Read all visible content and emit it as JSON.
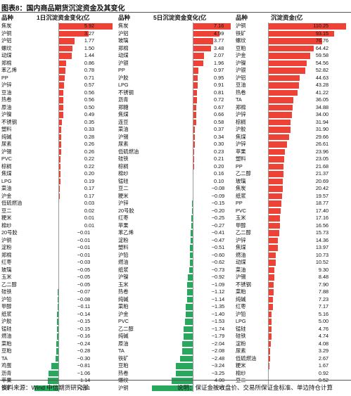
{
  "title": "图表8：国内商品期货沉淀资金及其变化",
  "source": "资料来源：Wind 中信期货研究部",
  "note": "说明：保证金按收盘价、交易所保证金标准、单边持仓计算",
  "colors": {
    "positive": "#ee4236",
    "negative": "#27a85d"
  },
  "chart_data": [
    {
      "type": "bar",
      "orientation": "horizontal",
      "name_header": "品种",
      "value_header": "1日沉淀资金变化(亿",
      "categories": [
        "焦炭",
        "沪铜",
        "沪铝",
        "螺纹",
        "动煤",
        "郑棉",
        "苯乙烯",
        "PP",
        "沪锌",
        "豆油",
        "热卷",
        "原油",
        "沪镍",
        "不锈钢",
        "塑料",
        "纯碱",
        "尿素",
        "沪锡",
        "PVC",
        "棕榈",
        "焦煤",
        "LPG",
        "菜油",
        "沪金",
        "低硫燃油",
        "豆二",
        "粳米",
        "棉纱",
        "20号胶",
        "沪铜",
        "淀粉",
        "郑棉",
        "红枣",
        "玻璃",
        "玉米",
        "乙二醇",
        "硅铁",
        "沪铅",
        "甲醇",
        "纸浆",
        "沪胶",
        "锰硅",
        "燃油",
        "菜粕",
        "豆粕",
        "TA",
        "鸡蛋",
        "沥青",
        "苹果",
        "铁矿"
      ],
      "values": [
        5.92,
        3.27,
        1.77,
        1.5,
        1.44,
        0.86,
        0.78,
        0.71,
        0.57,
        0.56,
        0.56,
        0.5,
        0.49,
        0.35,
        0.33,
        0.28,
        0.26,
        0.26,
        0.22,
        0.22,
        0.2,
        0.19,
        0.17,
        0.17,
        0.03,
        0.02,
        0.01,
        0.01,
        -0.01,
        -0.01,
        -0.01,
        -0.01,
        -0.03,
        -0.05,
        -0.05,
        -0.05,
        -0.07,
        -0.08,
        -0.11,
        -0.14,
        -0.15,
        -0.15,
        -0.16,
        -0.24,
        -0.28,
        -0.3,
        -0.81,
        -1.06,
        -1.14,
        -2.61
      ],
      "labels": [
        "5.92",
        "3.27",
        "1.77",
        "1.50",
        "1.44",
        "0.86",
        "0.78",
        "0.71",
        "0.57",
        "0.56",
        "0.56",
        "0.50",
        "0.49",
        "0.35",
        "0.33",
        "0.28",
        "0.26",
        "0.26",
        "0.22",
        "0.22",
        "0.20",
        "0.19",
        "0.17",
        "0.17",
        "0.03",
        "0.02",
        "0.01",
        "0.01",
        "−0.01",
        "−0.01",
        "−0.01",
        "−0.01",
        "−0.03",
        "−0.05",
        "−0.05",
        "−0.05",
        "−0.07",
        "−0.08",
        "−0.11",
        "−0.14",
        "−0.15",
        "−0.15",
        "−0.16",
        "−0.24",
        "−0.28",
        "−0.30",
        "−0.81",
        "−1.06",
        "−1.14",
        "−2.61"
      ],
      "xlim": [
        -2.7,
        6.2
      ]
    },
    {
      "type": "bar",
      "orientation": "horizontal",
      "name_header": "品种",
      "value_header": "5日沉淀资金变化(亿",
      "categories": [
        "焦炭",
        "沪铝",
        "玻璃",
        "郑棉",
        "动煤",
        "沪银",
        "PP",
        "沪胶",
        "LPG",
        "不锈钢",
        "沥青",
        "郑糖",
        "焦煤",
        "连豆",
        "菜油",
        "沪锡",
        "尿素",
        "低硫燃油",
        "硅铁",
        "棕榈",
        "棉纱",
        "锰硅",
        "豆二",
        "粳米",
        "沪锌",
        "20号胶",
        "红枣",
        "苹果",
        "苯乙烯",
        "淀粉",
        "塑料",
        "沪铅",
        "燃油",
        "纸浆",
        "沪镍",
        "玉米",
        "热卷",
        "纯碱",
        "菜粕",
        "沪金",
        "PVC",
        "乙二醇",
        "纯碱",
        "原油",
        "TA",
        "铁矿",
        "豆粕",
        "热卷",
        "螺纹",
        "沪铜"
      ],
      "values": [
        7.16,
        4.99,
        3.77,
        3.48,
        2.07,
        1.96,
        0.97,
        0.95,
        0.91,
        0.81,
        0.72,
        0.67,
        0.66,
        0.58,
        0.37,
        0.34,
        0.3,
        0.23,
        0.21,
        0.2,
        0.16,
        0.1,
        -0.08,
        -0.09,
        -0.15,
        -0.2,
        -0.25,
        -0.27,
        -0.41,
        -0.47,
        -0.51,
        -0.6,
        -0.62,
        -0.73,
        -0.92,
        -1.09,
        -1.12,
        -1.14,
        -1.35,
        -1.4,
        -1.53,
        -1.74,
        -1.79,
        -2.04,
        -2.08,
        -2.48,
        -3.24,
        -3.25,
        -4.0,
        -7.71
      ],
      "labels": [
        "7.16",
        "4.99",
        "3.77",
        "3.48",
        "2.07",
        "1.96",
        "0.97",
        "0.95",
        "0.91",
        "0.81",
        "0.72",
        "0.67",
        "0.66",
        "0.58",
        "0.37",
        "0.34",
        "0.30",
        "0.23",
        "0.21",
        "0.20",
        "0.16",
        "0.10",
        "−0.08",
        "−0.09",
        "−0.15",
        "−0.20",
        "−0.25",
        "−0.27",
        "−0.41",
        "−0.47",
        "−0.51",
        "−0.60",
        "−0.62",
        "−0.73",
        "−0.92",
        "−1.09",
        "−1.12",
        "−1.14",
        "−1.35",
        "−1.40",
        "−1.53",
        "−1.74",
        "−1.79",
        "−2.04",
        "−2.08",
        "−2.48",
        "−3.24",
        "−3.25",
        "−4.00",
        "−7.71"
      ],
      "xlim": [
        -8.0,
        7.4
      ]
    },
    {
      "type": "bar",
      "orientation": "horizontal",
      "name_header": "品种",
      "value_header": "沉淀资金(亿",
      "categories": [
        "沪铜",
        "铁矿",
        "螺纹",
        "豆粕",
        "沪金",
        "沪镍",
        "沪银",
        "沪铝",
        "豆油",
        "热卷",
        "TA",
        "郑棉",
        "沪锌",
        "棕榈",
        "沪胶",
        "焦煤",
        "沪锌",
        "苹果",
        "塑料",
        "PP",
        "乙二醇",
        "玻璃",
        "焦炭",
        "纸浆",
        "PP",
        "PVC",
        "玉米",
        "甲醇",
        "乙二醇",
        "沪锌",
        "焦煤",
        "燃油",
        "动煤",
        "菜油",
        "沪锡",
        "不锈钢",
        "菜粕",
        "纯碱",
        "红枣",
        "沪铅",
        "LPG",
        "锰硅",
        "硅铁",
        "淀粉",
        "尿素",
        "低硫燃油",
        "粳米",
        "棉纱",
        "豆二"
      ],
      "values": [
        110.25,
        93.15,
        76.76,
        64.42,
        59.58,
        54.56,
        52.82,
        44.63,
        43.28,
        41.22,
        36.05,
        34.88,
        34.0,
        31.94,
        31.9,
        29.66,
        26.61,
        23.96,
        23.05,
        21.68,
        21.37,
        20.69,
        20.42,
        19.57,
        18.77,
        17.4,
        17.16,
        16.56,
        15.73,
        14.36,
        13.97,
        10.73,
        10.52,
        9.3,
        8.48,
        7.9,
        7.88,
        7.23,
        7.17,
        5.16,
        5.0,
        4.76,
        4.74,
        4.08,
        3.29,
        2.67,
        1.67,
        0.92,
        0.52
      ],
      "labels": [
        "110.25",
        "93.15",
        "76.76",
        "64.42",
        "59.58",
        "54.56",
        "52.82",
        "44.63",
        "43.28",
        "41.22",
        "36.05",
        "34.88",
        "34.00",
        "31.94",
        "31.90",
        "29.66",
        "26.61",
        "23.96",
        "23.05",
        "21.68",
        "21.37",
        "20.69",
        "20.42",
        "19.57",
        "18.77",
        "17.40",
        "17.16",
        "16.56",
        "15.73",
        "14.36",
        "13.97",
        "10.73",
        "10.52",
        "9.30",
        "8.48",
        "7.90",
        "7.88",
        "7.23",
        "7.17",
        "5.16",
        "5.00",
        "4.76",
        "4.74",
        "4.08",
        "3.29",
        "2.67",
        "1.67",
        "0.92",
        "0.52"
      ],
      "xlim": [
        0,
        115
      ]
    }
  ]
}
